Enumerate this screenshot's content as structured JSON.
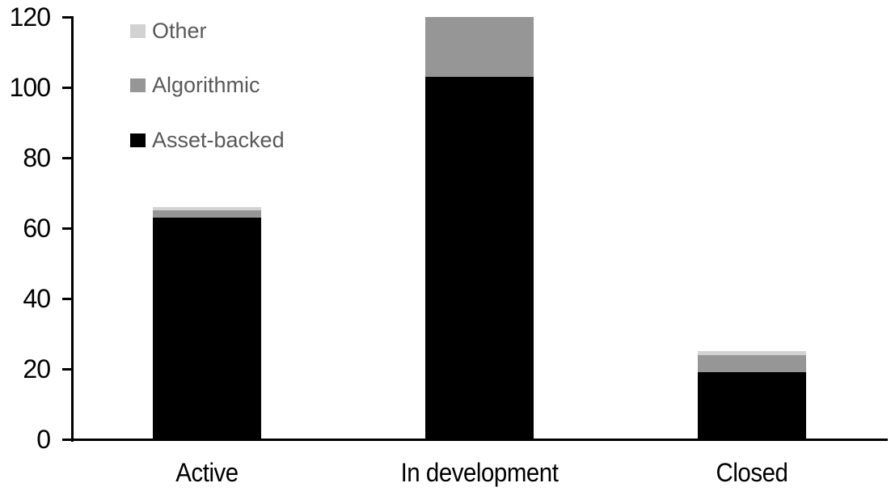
{
  "chart_data": {
    "type": "bar",
    "stacked": true,
    "title": "",
    "xlabel": "",
    "ylabel": "",
    "categories": [
      "Active",
      "In development",
      "Closed"
    ],
    "series": [
      {
        "name": "Asset-backed",
        "color": "#000000",
        "values": [
          63,
          103,
          19
        ]
      },
      {
        "name": "Algorithmic",
        "color": "#969696",
        "values": [
          2,
          17,
          5
        ]
      },
      {
        "name": "Other",
        "color": "#d2d2d2",
        "values": [
          1,
          0,
          1
        ]
      }
    ],
    "yticks": [
      "0",
      "20",
      "40",
      "60",
      "80",
      "100",
      "120"
    ],
    "ytick_values": [
      0,
      20,
      40,
      60,
      80,
      100,
      120
    ],
    "ylim": [
      0,
      120
    ],
    "grid": false,
    "legend": {
      "position": "top-left",
      "entries": [
        {
          "label": "Other",
          "color": "#d2d2d2"
        },
        {
          "label": "Algorithmic",
          "color": "#969696"
        },
        {
          "label": "Asset-backed",
          "color": "#000000"
        }
      ],
      "text_color": "#595959"
    },
    "axis_color": "#000000",
    "background": "#ffffff"
  }
}
